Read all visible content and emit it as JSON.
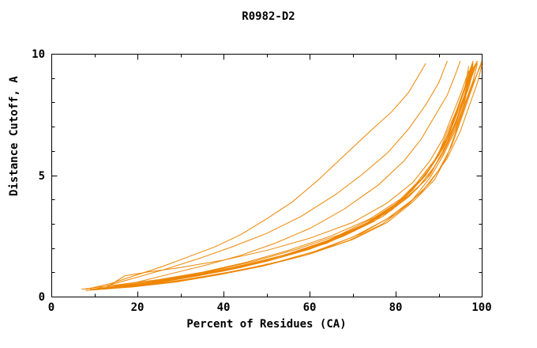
{
  "chart_data": {
    "type": "line",
    "title": "R0982-D2",
    "xlabel": "Percent of Residues (CA)",
    "ylabel": "Distance Cutoff, A",
    "xlim": [
      0,
      100
    ],
    "ylim": [
      0,
      10
    ],
    "xticks_major": [
      0,
      20,
      40,
      60,
      80,
      100
    ],
    "xticks_minor": [
      10,
      30,
      50,
      70,
      90
    ],
    "yticks_major": [
      0,
      5,
      10
    ],
    "yticks_minor": [
      1,
      2,
      3,
      4,
      6,
      7,
      8,
      9
    ],
    "grid": false,
    "legend": false,
    "line_color": "#ee8500",
    "background_color": "#ffffff",
    "axis_color": "#000000",
    "series": [
      [
        [
          8,
          0.3
        ],
        [
          14,
          0.55
        ],
        [
          20,
          0.9
        ],
        [
          26,
          1.25
        ],
        [
          32,
          1.65
        ],
        [
          38,
          2.05
        ],
        [
          44,
          2.55
        ],
        [
          50,
          3.2
        ],
        [
          56,
          3.9
        ],
        [
          62,
          4.8
        ],
        [
          68,
          5.8
        ],
        [
          74,
          6.8
        ],
        [
          79,
          7.6
        ],
        [
          83,
          8.4
        ],
        [
          87,
          9.6
        ]
      ],
      [
        [
          10,
          0.3
        ],
        [
          18,
          0.7
        ],
        [
          26,
          1.1
        ],
        [
          34,
          1.55
        ],
        [
          42,
          2.05
        ],
        [
          50,
          2.6
        ],
        [
          58,
          3.3
        ],
        [
          66,
          4.2
        ],
        [
          72,
          5.0
        ],
        [
          78,
          5.9
        ],
        [
          83,
          6.9
        ],
        [
          87,
          7.9
        ],
        [
          90,
          8.8
        ],
        [
          92,
          9.7
        ]
      ],
      [
        [
          12,
          0.35
        ],
        [
          20,
          0.6
        ],
        [
          28,
          0.95
        ],
        [
          36,
          1.3
        ],
        [
          44,
          1.7
        ],
        [
          52,
          2.2
        ],
        [
          60,
          2.8
        ],
        [
          68,
          3.6
        ],
        [
          76,
          4.6
        ],
        [
          82,
          5.6
        ],
        [
          86,
          6.5
        ],
        [
          89,
          7.4
        ],
        [
          92,
          8.3
        ],
        [
          94,
          9.2
        ],
        [
          95,
          9.7
        ]
      ],
      [
        [
          9,
          0.3
        ],
        [
          20,
          0.5
        ],
        [
          30,
          0.75
        ],
        [
          40,
          1.05
        ],
        [
          50,
          1.45
        ],
        [
          60,
          1.95
        ],
        [
          68,
          2.5
        ],
        [
          75,
          3.1
        ],
        [
          80,
          3.8
        ],
        [
          85,
          4.7
        ],
        [
          89,
          5.6
        ],
        [
          92,
          6.6
        ],
        [
          94,
          7.5
        ],
        [
          96,
          8.5
        ],
        [
          97,
          9.5
        ]
      ],
      [
        [
          11,
          0.3
        ],
        [
          22,
          0.5
        ],
        [
          32,
          0.8
        ],
        [
          42,
          1.15
        ],
        [
          52,
          1.55
        ],
        [
          62,
          2.1
        ],
        [
          70,
          2.7
        ],
        [
          77,
          3.4
        ],
        [
          82,
          4.1
        ],
        [
          87,
          5.0
        ],
        [
          90,
          5.9
        ],
        [
          93,
          7.0
        ],
        [
          95,
          8.0
        ],
        [
          97,
          9.0
        ],
        [
          98,
          9.6
        ]
      ],
      [
        [
          13,
          0.35
        ],
        [
          24,
          0.55
        ],
        [
          34,
          0.85
        ],
        [
          44,
          1.2
        ],
        [
          54,
          1.65
        ],
        [
          64,
          2.2
        ],
        [
          72,
          2.85
        ],
        [
          79,
          3.6
        ],
        [
          84,
          4.4
        ],
        [
          88,
          5.3
        ],
        [
          91,
          6.2
        ],
        [
          93,
          7.1
        ],
        [
          95,
          8.1
        ],
        [
          97,
          9.1
        ],
        [
          98,
          9.7
        ]
      ],
      [
        [
          10,
          0.3
        ],
        [
          21,
          0.45
        ],
        [
          31,
          0.7
        ],
        [
          41,
          1.0
        ],
        [
          51,
          1.35
        ],
        [
          61,
          1.85
        ],
        [
          70,
          2.45
        ],
        [
          78,
          3.2
        ],
        [
          84,
          4.0
        ],
        [
          88,
          4.9
        ],
        [
          91,
          5.8
        ],
        [
          94,
          6.9
        ],
        [
          96,
          7.9
        ],
        [
          98,
          8.9
        ],
        [
          99,
          9.6
        ]
      ],
      [
        [
          14,
          0.35
        ],
        [
          25,
          0.6
        ],
        [
          35,
          0.9
        ],
        [
          45,
          1.3
        ],
        [
          55,
          1.75
        ],
        [
          65,
          2.35
        ],
        [
          73,
          3.0
        ],
        [
          80,
          3.8
        ],
        [
          85,
          4.7
        ],
        [
          89,
          5.6
        ],
        [
          92,
          6.5
        ],
        [
          94,
          7.4
        ],
        [
          96,
          8.3
        ],
        [
          98,
          9.2
        ],
        [
          99,
          9.7
        ]
      ],
      [
        [
          8,
          0.25
        ],
        [
          19,
          0.4
        ],
        [
          29,
          0.6
        ],
        [
          39,
          0.9
        ],
        [
          49,
          1.25
        ],
        [
          59,
          1.7
        ],
        [
          69,
          2.3
        ],
        [
          77,
          3.0
        ],
        [
          83,
          3.8
        ],
        [
          88,
          4.7
        ],
        [
          92,
          5.7
        ],
        [
          95,
          6.8
        ],
        [
          97,
          7.8
        ],
        [
          99,
          8.8
        ],
        [
          100,
          9.5
        ]
      ],
      [
        [
          12,
          0.3
        ],
        [
          23,
          0.5
        ],
        [
          33,
          0.75
        ],
        [
          43,
          1.05
        ],
        [
          53,
          1.45
        ],
        [
          63,
          1.95
        ],
        [
          72,
          2.6
        ],
        [
          80,
          3.4
        ],
        [
          86,
          4.3
        ],
        [
          90,
          5.2
        ],
        [
          93,
          6.2
        ],
        [
          95,
          7.2
        ],
        [
          97,
          8.2
        ],
        [
          99,
          9.2
        ],
        [
          100,
          9.7
        ]
      ],
      [
        [
          15,
          0.4
        ],
        [
          26,
          0.65
        ],
        [
          36,
          0.95
        ],
        [
          46,
          1.35
        ],
        [
          56,
          1.8
        ],
        [
          66,
          2.4
        ],
        [
          74,
          3.1
        ],
        [
          81,
          3.9
        ],
        [
          86,
          4.8
        ],
        [
          90,
          5.8
        ],
        [
          93,
          6.8
        ],
        [
          95,
          7.7
        ],
        [
          97,
          8.6
        ],
        [
          98,
          9.3
        ],
        [
          99,
          9.7
        ]
      ],
      [
        [
          9,
          0.3
        ],
        [
          20,
          0.45
        ],
        [
          30,
          0.65
        ],
        [
          40,
          0.95
        ],
        [
          50,
          1.3
        ],
        [
          60,
          1.75
        ],
        [
          70,
          2.35
        ],
        [
          78,
          3.05
        ],
        [
          84,
          3.9
        ],
        [
          89,
          4.8
        ],
        [
          92,
          5.8
        ],
        [
          94,
          6.8
        ],
        [
          96,
          7.8
        ],
        [
          98,
          8.8
        ],
        [
          100,
          9.6
        ]
      ],
      [
        [
          13,
          0.4
        ],
        [
          17,
          0.85
        ],
        [
          22,
          1.0
        ],
        [
          30,
          1.2
        ],
        [
          40,
          1.5
        ],
        [
          50,
          1.9
        ],
        [
          60,
          2.4
        ],
        [
          70,
          3.05
        ],
        [
          78,
          3.85
        ],
        [
          84,
          4.7
        ],
        [
          88,
          5.6
        ],
        [
          91,
          6.5
        ],
        [
          93,
          7.4
        ],
        [
          95,
          8.3
        ],
        [
          97,
          9.3
        ]
      ],
      [
        [
          11,
          0.3
        ],
        [
          22,
          0.55
        ],
        [
          32,
          0.85
        ],
        [
          42,
          1.2
        ],
        [
          52,
          1.6
        ],
        [
          62,
          2.15
        ],
        [
          71,
          2.8
        ],
        [
          79,
          3.55
        ],
        [
          85,
          4.45
        ],
        [
          89,
          5.35
        ],
        [
          92,
          6.3
        ],
        [
          94,
          7.2
        ],
        [
          96,
          8.1
        ],
        [
          97,
          8.9
        ],
        [
          98,
          9.5
        ]
      ],
      [
        [
          10,
          0.3
        ],
        [
          20,
          0.5
        ],
        [
          30,
          0.8
        ],
        [
          40,
          1.1
        ],
        [
          50,
          1.5
        ],
        [
          60,
          2.0
        ],
        [
          69,
          2.6
        ],
        [
          77,
          3.3
        ],
        [
          83,
          4.1
        ],
        [
          88,
          5.0
        ],
        [
          91,
          6.0
        ],
        [
          94,
          7.1
        ],
        [
          96,
          8.2
        ],
        [
          98,
          9.3
        ],
        [
          99,
          9.7
        ]
      ],
      [
        [
          12,
          0.35
        ],
        [
          24,
          0.6
        ],
        [
          34,
          0.9
        ],
        [
          44,
          1.25
        ],
        [
          54,
          1.7
        ],
        [
          64,
          2.3
        ],
        [
          73,
          3.0
        ],
        [
          81,
          3.85
        ],
        [
          87,
          4.8
        ],
        [
          91,
          5.9
        ],
        [
          94,
          7.0
        ],
        [
          96,
          8.0
        ],
        [
          97,
          8.8
        ],
        [
          98,
          9.4
        ],
        [
          99,
          9.7
        ]
      ],
      [
        [
          7,
          0.3
        ],
        [
          16,
          0.5
        ],
        [
          25,
          0.7
        ],
        [
          35,
          1.0
        ],
        [
          45,
          1.4
        ],
        [
          55,
          1.9
        ],
        [
          65,
          2.5
        ],
        [
          74,
          3.2
        ],
        [
          81,
          4.0
        ],
        [
          87,
          5.0
        ],
        [
          91,
          6.1
        ],
        [
          94,
          7.2
        ],
        [
          96,
          8.3
        ],
        [
          97,
          9.0
        ],
        [
          98,
          9.6
        ]
      ],
      [
        [
          14,
          0.4
        ],
        [
          26,
          0.7
        ],
        [
          37,
          1.05
        ],
        [
          47,
          1.45
        ],
        [
          57,
          1.95
        ],
        [
          67,
          2.55
        ],
        [
          75,
          3.25
        ],
        [
          82,
          4.05
        ],
        [
          87,
          5.0
        ],
        [
          90,
          5.9
        ],
        [
          92,
          6.8
        ],
        [
          94,
          7.6
        ],
        [
          96,
          8.5
        ],
        [
          97,
          9.2
        ],
        [
          98,
          9.7
        ]
      ]
    ]
  }
}
